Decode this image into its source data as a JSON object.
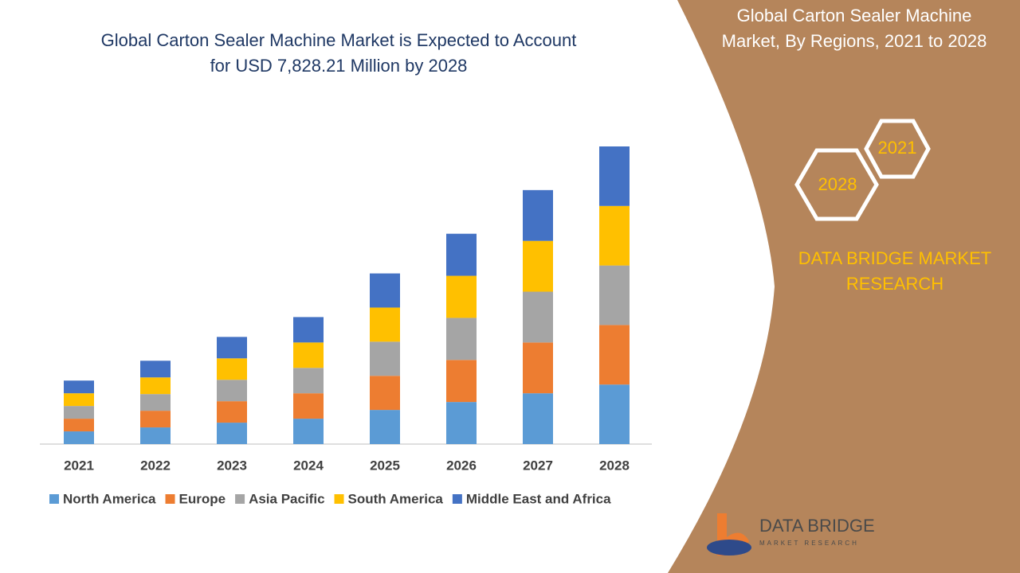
{
  "chart_data": {
    "type": "stacked-bar",
    "title": "Global Carton Sealer Machine Market is Expected to Account for USD 7,828.21 Million by 2028",
    "categories": [
      "2021",
      "2022",
      "2023",
      "2024",
      "2025",
      "2026",
      "2027",
      "2028"
    ],
    "series": [
      {
        "name": "North America",
        "color": "#5b9bd5",
        "values": [
          16,
          21,
          27,
          32,
          43,
          53,
          64,
          75
        ]
      },
      {
        "name": "Europe",
        "color": "#ed7d31",
        "values": [
          16,
          21,
          27,
          32,
          43,
          53,
          64,
          75
        ]
      },
      {
        "name": "Asia Pacific",
        "color": "#a5a5a5",
        "values": [
          16,
          21,
          27,
          32,
          43,
          53,
          64,
          75
        ]
      },
      {
        "name": "South America",
        "color": "#ffc000",
        "values": [
          16,
          21,
          27,
          32,
          43,
          53,
          64,
          75
        ]
      },
      {
        "name": "Middle East and Africa",
        "color": "#4472c4",
        "values": [
          16,
          21,
          27,
          32,
          43,
          53,
          64,
          75
        ]
      }
    ],
    "legend": "bottom"
  },
  "side_panel": {
    "title": "Global Carton Sealer Machine Market, By Regions, 2021 to 2028",
    "hexagons": [
      "2021",
      "2028"
    ],
    "brand": "DATA BRIDGE MARKET RESEARCH"
  },
  "logo": {
    "name": "DATA BRIDGE",
    "tagline": "MARKET RESEARCH"
  }
}
